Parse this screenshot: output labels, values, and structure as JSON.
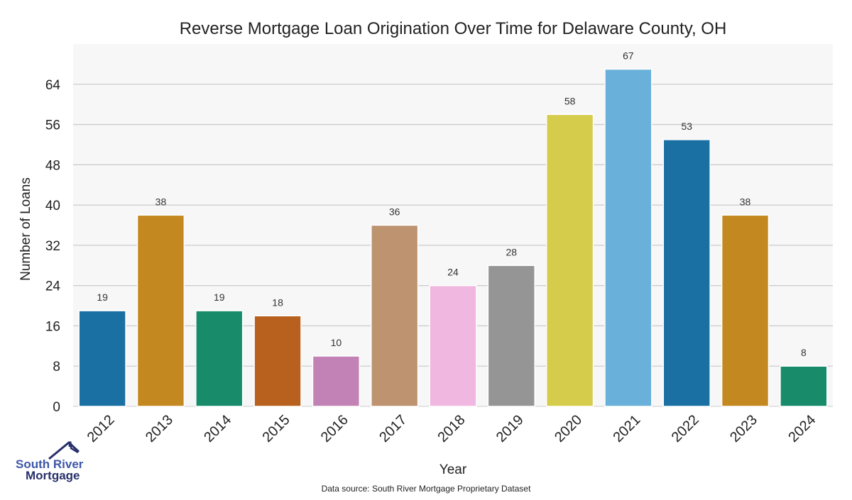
{
  "chart_data": {
    "type": "bar",
    "title": "Reverse Mortgage Loan Origination Over Time for Delaware County, OH",
    "xlabel": "Year",
    "ylabel": "Number of Loans",
    "categories": [
      "2012",
      "2013",
      "2014",
      "2015",
      "2016",
      "2017",
      "2018",
      "2019",
      "2020",
      "2021",
      "2022",
      "2023",
      "2024"
    ],
    "values": [
      19,
      38,
      19,
      18,
      10,
      36,
      24,
      28,
      58,
      67,
      53,
      38,
      8
    ],
    "colors": [
      "#1a6fa3",
      "#c48820",
      "#178b6a",
      "#b8611e",
      "#c382b5",
      "#bd9370",
      "#f0b8e0",
      "#959595",
      "#d6cc4c",
      "#69b0da",
      "#1a6fa3",
      "#c48820",
      "#178b6a"
    ],
    "yticks": [
      0,
      8,
      16,
      24,
      32,
      40,
      48,
      56,
      64
    ],
    "ylim": [
      0,
      72
    ],
    "grid": true,
    "background": "#f7f7f7"
  },
  "source_note": "Data source: South River Mortgage Proprietary Dataset",
  "logo": {
    "line1": "South River",
    "line2": "Mortgage"
  }
}
